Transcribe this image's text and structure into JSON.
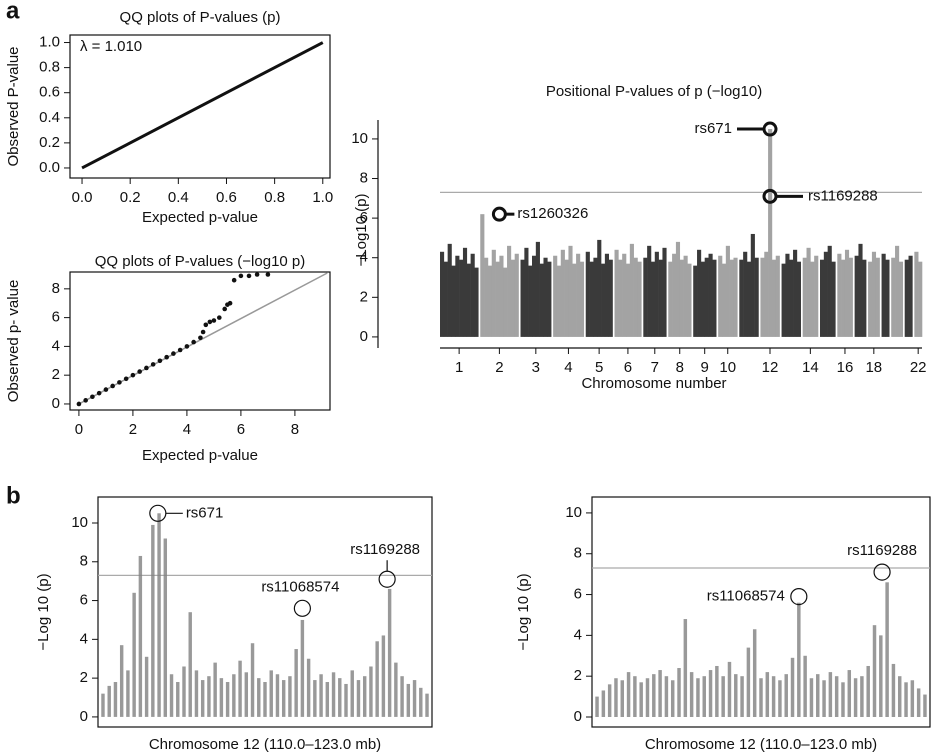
{
  "panels": [
    "a",
    "b"
  ],
  "chart_data": [
    {
      "type": "qq",
      "title": "QQ plots of P-values (p)",
      "x_label": "Expected p-value",
      "y_label": "Observed P-value",
      "xlim": [
        -0.05,
        1.03
      ],
      "ylim": [
        -0.08,
        1.06
      ],
      "xticks": [
        {
          "value": 0,
          "label": "0.0"
        },
        {
          "value": 0.2,
          "label": "0.2"
        },
        {
          "value": 0.4,
          "label": "0.4"
        },
        {
          "value": 0.6,
          "label": "0.6"
        },
        {
          "value": 0.8,
          "label": "0.8"
        },
        {
          "value": 1,
          "label": "1.0"
        }
      ],
      "yticks": [
        {
          "value": 0,
          "label": "0.0"
        },
        {
          "value": 0.2,
          "label": "0.2"
        },
        {
          "value": 0.4,
          "label": "0.4"
        },
        {
          "value": 0.6,
          "label": "0.6"
        },
        {
          "value": 0.8,
          "label": "0.8"
        },
        {
          "value": 1,
          "label": "1.0"
        }
      ],
      "annotations": [
        {
          "text": "λ = 1.010"
        }
      ],
      "series": [
        {
          "mode": "line",
          "color": "#111111",
          "x": [
            0,
            1
          ],
          "y": [
            0,
            1
          ]
        }
      ]
    },
    {
      "type": "qq",
      "title": "QQ plots of P-values (−log10 p)",
      "x_label": "Expected p-value",
      "y_label": "Observed p- value",
      "xlim": [
        -0.33,
        9.3
      ],
      "ylim": [
        -0.42,
        9.17
      ],
      "xticks": [
        0,
        2,
        4,
        6,
        8
      ],
      "yticks": [
        0,
        2,
        4,
        6,
        8
      ],
      "series": [
        {
          "mode": "line",
          "color": "#999999",
          "x": [
            0,
            9.2
          ],
          "y": [
            0,
            9.1
          ]
        },
        {
          "mode": "points",
          "color": "#111111",
          "x": [
            0,
            0.25,
            0.5,
            0.75,
            1,
            1.25,
            1.5,
            1.75,
            2,
            2.25,
            2.5,
            2.75,
            3,
            3.25,
            3.5,
            3.75,
            4,
            4.25,
            4.5,
            4.6,
            4.7,
            4.85,
            5,
            5.2,
            5.4,
            5.5,
            5.6,
            5.75,
            6,
            6.3,
            6.6,
            7
          ],
          "y": [
            0,
            0.25,
            0.5,
            0.75,
            1,
            1.25,
            1.5,
            1.75,
            2,
            2.25,
            2.5,
            2.75,
            3,
            3.25,
            3.5,
            3.75,
            4,
            4.3,
            4.6,
            5,
            5.5,
            5.7,
            5.8,
            6,
            6.6,
            6.9,
            7,
            8.6,
            8.9,
            8.9,
            9,
            9
          ]
        }
      ]
    },
    {
      "type": "manhattan",
      "title": "Positional P-values of p (−log10)",
      "x_label": "Chromosome number",
      "y_label": "−Log10 (p)",
      "ylim": [
        -0.56,
        11.36
      ],
      "yticks": [
        0,
        2,
        4,
        6,
        8,
        10
      ],
      "threshold": 7.3,
      "colors": [
        "#3a3a3a",
        "#a3a3a3"
      ],
      "categories": [
        "1",
        "2",
        "3",
        "4",
        "5",
        "6",
        "7",
        "8",
        "9",
        "10",
        null,
        "12",
        null,
        "14",
        null,
        "16",
        null,
        "18",
        null,
        null,
        null,
        "22"
      ],
      "values": [
        [
          4.3,
          3.8,
          4.7,
          3.6,
          4.1,
          3.9,
          4.5,
          3.7,
          4.2,
          3.5
        ],
        [
          6.2,
          4.0,
          3.6,
          4.4,
          3.8,
          4.1,
          3.5,
          4.6,
          3.9,
          4.2
        ],
        [
          3.9,
          4.5,
          3.6,
          4.1,
          4.8,
          3.7,
          4.0,
          3.8
        ],
        [
          4.1,
          3.6,
          4.4,
          3.9,
          4.6,
          3.7,
          4.2,
          3.8
        ],
        [
          4.3,
          3.8,
          4.0,
          4.9,
          3.7,
          4.2,
          3.9
        ],
        [
          4.4,
          3.9,
          4.2,
          3.7,
          4.7,
          4.0,
          3.8
        ],
        [
          4.0,
          4.6,
          3.8,
          4.3,
          3.9,
          4.5
        ],
        [
          3.8,
          4.2,
          4.8,
          3.9,
          4.1,
          3.7
        ],
        [
          3.6,
          4.4,
          3.8,
          4.0,
          4.2,
          3.9
        ],
        [
          4.1,
          3.7,
          4.6,
          3.9,
          4.0
        ],
        [
          3.9,
          4.3,
          3.8,
          5.2,
          4.0
        ],
        [
          4.0,
          4.3,
          10.5,
          3.9,
          4.1
        ],
        [
          3.7,
          4.2,
          3.9,
          4.4,
          3.8
        ],
        [
          4.0,
          4.5,
          3.8,
          4.1
        ],
        [
          3.9,
          4.3,
          4.6,
          3.8
        ],
        [
          4.2,
          3.9,
          4.4,
          4.0
        ],
        [
          4.1,
          4.7,
          3.9
        ],
        [
          3.8,
          4.3,
          4.0
        ],
        [
          4.2,
          3.9
        ],
        [
          4.0,
          4.6,
          3.8
        ],
        [
          3.9,
          4.1
        ],
        [
          4.3,
          3.8
        ]
      ],
      "annotations": [
        {
          "label": "rs671",
          "chromosome": 12,
          "y": 10.5
        },
        {
          "label": "rs1169288",
          "chromosome": 12,
          "y": 7.1
        },
        {
          "label": "rs1260326",
          "chromosome": 2,
          "y": 6.2
        }
      ]
    },
    {
      "type": "regional",
      "x_label": "Chromosome 12 (110.0–123.0 mb)",
      "y_label": "−Log 10 (p)",
      "color": "#808080",
      "xlim": [
        109.8,
        123.2
      ],
      "ylim": [
        -0.52,
        11.34
      ],
      "yticks": [
        0,
        2,
        4,
        6,
        8,
        10
      ],
      "threshold": 7.3,
      "x": [
        110,
        110.25,
        110.5,
        110.75,
        111,
        111.25,
        111.5,
        111.75,
        112,
        112.25,
        112.5,
        112.75,
        113,
        113.25,
        113.5,
        113.75,
        114,
        114.25,
        114.5,
        114.75,
        115,
        115.25,
        115.5,
        115.75,
        116,
        116.25,
        116.5,
        116.75,
        117,
        117.25,
        117.5,
        117.75,
        118,
        118.25,
        118.5,
        118.75,
        119,
        119.25,
        119.5,
        119.75,
        120,
        120.25,
        120.5,
        120.75,
        121,
        121.25,
        121.5,
        121.75,
        122,
        122.25,
        122.5,
        122.75,
        123
      ],
      "values": [
        1.2,
        1.6,
        1.8,
        3.7,
        2.4,
        6.4,
        8.3,
        3.1,
        9.9,
        10.5,
        9.2,
        2.2,
        1.8,
        2.6,
        5.4,
        2.4,
        1.9,
        2.1,
        2.8,
        2.0,
        1.8,
        2.2,
        2.9,
        2.3,
        3.8,
        2.0,
        1.8,
        2.4,
        2.2,
        1.9,
        2.1,
        3.5,
        5.0,
        3.0,
        1.9,
        2.2,
        1.8,
        2.3,
        2.0,
        1.7,
        2.4,
        1.9,
        2.1,
        2.6,
        3.9,
        4.2,
        6.6,
        2.8,
        2.1,
        1.7,
        1.9,
        1.5,
        1.2
      ],
      "annotations": [
        {
          "label": "rs671",
          "x": 112.2,
          "y": 10.5
        },
        {
          "label": "rs11068574",
          "x": 118.0,
          "y": 5.6
        },
        {
          "label": "rs1169288",
          "x": 121.4,
          "y": 7.1
        }
      ]
    },
    {
      "type": "regional",
      "x_label": "Chromosome 12 (110.0–123.0 mb)",
      "y_label": "−Log 10 (p)",
      "color": "#808080",
      "xlim": [
        109.8,
        123.2
      ],
      "ylim": [
        -0.49,
        10.78
      ],
      "yticks": [
        0,
        2,
        4,
        6,
        8,
        10
      ],
      "threshold": 7.3,
      "x": [
        110,
        110.25,
        110.5,
        110.75,
        111,
        111.25,
        111.5,
        111.75,
        112,
        112.25,
        112.5,
        112.75,
        113,
        113.25,
        113.5,
        113.75,
        114,
        114.25,
        114.5,
        114.75,
        115,
        115.25,
        115.5,
        115.75,
        116,
        116.25,
        116.5,
        116.75,
        117,
        117.25,
        117.5,
        117.75,
        118,
        118.25,
        118.5,
        118.75,
        119,
        119.25,
        119.5,
        119.75,
        120,
        120.25,
        120.5,
        120.75,
        121,
        121.25,
        121.5,
        121.75,
        122,
        122.25,
        122.5,
        122.75,
        123
      ],
      "values": [
        1.0,
        1.3,
        1.6,
        1.9,
        1.8,
        2.2,
        2.0,
        1.7,
        1.9,
        2.1,
        2.3,
        2.0,
        1.8,
        2.4,
        4.8,
        2.2,
        1.9,
        2.0,
        2.3,
        2.5,
        2.0,
        2.7,
        2.1,
        2.0,
        3.4,
        4.3,
        1.9,
        2.2,
        2.0,
        1.8,
        2.1,
        2.9,
        5.6,
        3.0,
        1.9,
        2.1,
        1.8,
        2.2,
        2.0,
        1.7,
        2.3,
        1.9,
        2.0,
        2.5,
        4.5,
        4.0,
        6.6,
        2.6,
        2.0,
        1.7,
        1.8,
        1.4,
        1.1
      ],
      "annotations": [
        {
          "label": "rs11068574",
          "x": 118.0,
          "y": 5.9
        },
        {
          "label": "rs1169288",
          "x": 121.3,
          "y": 7.1
        }
      ]
    }
  ]
}
